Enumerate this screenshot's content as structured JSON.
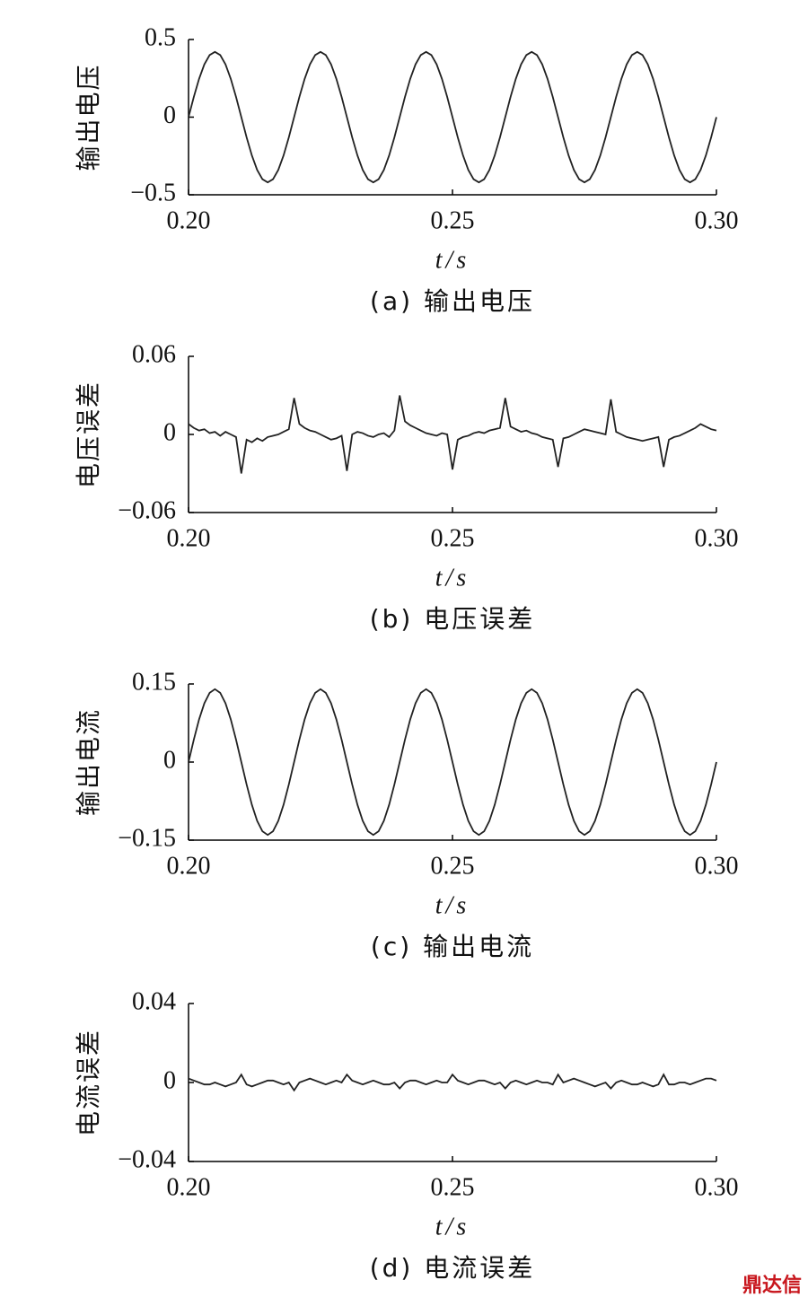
{
  "chart_data": [
    {
      "type": "line",
      "ylabel": "输出电压",
      "xlabel": "t/s",
      "caption": "(a) 输出电压",
      "color": "#222222",
      "xlim": [
        0.2,
        0.3
      ],
      "xticks": [
        {
          "value": 0.2,
          "label": "0.20"
        },
        0.25,
        {
          "value": 0.3,
          "label": "0.30"
        }
      ],
      "ylim": [
        -0.5,
        0.5
      ],
      "yticks": [
        {
          "value": -0.5,
          "label": "−0.5"
        },
        0,
        0.5
      ],
      "x": [
        0.2,
        0.201,
        0.202,
        0.203,
        0.204,
        0.205,
        0.206,
        0.207,
        0.208,
        0.209,
        0.21,
        0.211,
        0.212,
        0.213,
        0.214,
        0.215,
        0.216,
        0.217,
        0.218,
        0.219,
        0.22,
        0.221,
        0.222,
        0.223,
        0.224,
        0.225,
        0.226,
        0.227,
        0.228,
        0.229,
        0.23,
        0.231,
        0.232,
        0.233,
        0.234,
        0.235,
        0.236,
        0.237,
        0.238,
        0.239,
        0.24,
        0.241,
        0.242,
        0.243,
        0.244,
        0.245,
        0.246,
        0.247,
        0.248,
        0.249,
        0.25,
        0.251,
        0.252,
        0.253,
        0.254,
        0.255,
        0.256,
        0.257,
        0.258,
        0.259,
        0.26,
        0.261,
        0.262,
        0.263,
        0.264,
        0.265,
        0.266,
        0.267,
        0.268,
        0.269,
        0.27,
        0.271,
        0.272,
        0.273,
        0.274,
        0.275,
        0.276,
        0.277,
        0.278,
        0.279,
        0.28,
        0.281,
        0.282,
        0.283,
        0.284,
        0.285,
        0.286,
        0.287,
        0.288,
        0.289,
        0.29,
        0.291,
        0.292,
        0.293,
        0.294,
        0.295,
        0.296,
        0.297,
        0.298,
        0.299,
        0.3
      ],
      "values": [
        0,
        0.13,
        0.247,
        0.34,
        0.4,
        0.42,
        0.4,
        0.34,
        0.247,
        0.13,
        0,
        -0.13,
        -0.247,
        -0.34,
        -0.4,
        -0.42,
        -0.4,
        -0.34,
        -0.247,
        -0.13,
        0,
        0.13,
        0.247,
        0.34,
        0.4,
        0.42,
        0.4,
        0.34,
        0.247,
        0.13,
        0,
        -0.13,
        -0.247,
        -0.34,
        -0.4,
        -0.42,
        -0.4,
        -0.34,
        -0.247,
        -0.13,
        0,
        0.13,
        0.247,
        0.34,
        0.4,
        0.42,
        0.4,
        0.34,
        0.247,
        0.13,
        0,
        -0.13,
        -0.247,
        -0.34,
        -0.4,
        -0.42,
        -0.4,
        -0.34,
        -0.247,
        -0.13,
        0,
        0.13,
        0.247,
        0.34,
        0.4,
        0.42,
        0.4,
        0.34,
        0.247,
        0.13,
        0,
        -0.13,
        -0.247,
        -0.34,
        -0.4,
        -0.42,
        -0.4,
        -0.34,
        -0.247,
        -0.13,
        0,
        0.13,
        0.247,
        0.34,
        0.4,
        0.42,
        0.4,
        0.34,
        0.247,
        0.13,
        0,
        -0.13,
        -0.247,
        -0.34,
        -0.4,
        -0.42,
        -0.4,
        -0.34,
        -0.247,
        -0.13,
        0
      ]
    },
    {
      "type": "line",
      "ylabel": "电压误差",
      "xlabel": "t/s",
      "caption": "(b) 电压误差",
      "color": "#222222",
      "xlim": [
        0.2,
        0.3
      ],
      "xticks": [
        {
          "value": 0.2,
          "label": "0.20"
        },
        0.25,
        {
          "value": 0.3,
          "label": "0.30"
        }
      ],
      "ylim": [
        -0.06,
        0.06
      ],
      "yticks": [
        {
          "value": -0.06,
          "label": "−0.06"
        },
        0,
        0.06
      ],
      "x": [
        0.2,
        0.201,
        0.202,
        0.203,
        0.204,
        0.205,
        0.206,
        0.207,
        0.208,
        0.209,
        0.21,
        0.211,
        0.212,
        0.213,
        0.214,
        0.215,
        0.216,
        0.217,
        0.218,
        0.219,
        0.22,
        0.221,
        0.222,
        0.223,
        0.224,
        0.225,
        0.226,
        0.227,
        0.228,
        0.229,
        0.23,
        0.231,
        0.232,
        0.233,
        0.234,
        0.235,
        0.236,
        0.237,
        0.238,
        0.239,
        0.24,
        0.241,
        0.242,
        0.243,
        0.244,
        0.245,
        0.246,
        0.247,
        0.248,
        0.249,
        0.25,
        0.251,
        0.252,
        0.253,
        0.254,
        0.255,
        0.256,
        0.257,
        0.258,
        0.259,
        0.26,
        0.261,
        0.262,
        0.263,
        0.264,
        0.265,
        0.266,
        0.267,
        0.268,
        0.269,
        0.27,
        0.271,
        0.272,
        0.273,
        0.274,
        0.275,
        0.276,
        0.277,
        0.278,
        0.279,
        0.28,
        0.281,
        0.282,
        0.283,
        0.284,
        0.285,
        0.286,
        0.287,
        0.288,
        0.289,
        0.29,
        0.291,
        0.292,
        0.293,
        0.294,
        0.295,
        0.296,
        0.297,
        0.298,
        0.299,
        0.3
      ],
      "values": [
        0.008,
        0.005,
        0.003,
        0.004,
        0.001,
        0.002,
        -0.001,
        0.002,
        0.0,
        -0.002,
        -0.03,
        -0.004,
        -0.006,
        -0.003,
        -0.005,
        -0.002,
        -0.001,
        0.0,
        0.002,
        0.004,
        0.028,
        0.008,
        0.005,
        0.003,
        0.002,
        0.0,
        -0.002,
        -0.004,
        -0.003,
        -0.001,
        -0.028,
        0.0,
        0.002,
        0.001,
        -0.001,
        -0.002,
        0.0,
        0.001,
        -0.002,
        0.003,
        0.03,
        0.01,
        0.007,
        0.005,
        0.003,
        0.001,
        0.0,
        -0.001,
        0.001,
        0.0,
        -0.027,
        -0.004,
        -0.002,
        -0.001,
        0.001,
        0.002,
        0.001,
        0.003,
        0.004,
        0.005,
        0.028,
        0.006,
        0.004,
        0.002,
        0.003,
        0.001,
        0.0,
        -0.002,
        -0.003,
        -0.004,
        -0.025,
        -0.003,
        -0.002,
        0.0,
        0.002,
        0.004,
        0.003,
        0.002,
        0.001,
        0.0,
        0.027,
        0.002,
        0.0,
        -0.002,
        -0.003,
        -0.004,
        -0.005,
        -0.004,
        -0.003,
        -0.002,
        -0.025,
        -0.004,
        -0.002,
        -0.001,
        0.001,
        0.003,
        0.005,
        0.008,
        0.006,
        0.004,
        0.003
      ]
    },
    {
      "type": "line",
      "ylabel": "输出电流",
      "xlabel": "t/s",
      "caption": "(c) 输出电流",
      "color": "#222222",
      "xlim": [
        0.2,
        0.3
      ],
      "xticks": [
        {
          "value": 0.2,
          "label": "0.20"
        },
        0.25,
        {
          "value": 0.3,
          "label": "0.30"
        }
      ],
      "ylim": [
        -0.15,
        0.15
      ],
      "yticks": [
        {
          "value": -0.15,
          "label": "−0.15"
        },
        0,
        0.15
      ],
      "x": [
        0.2,
        0.201,
        0.202,
        0.203,
        0.204,
        0.205,
        0.206,
        0.207,
        0.208,
        0.209,
        0.21,
        0.211,
        0.212,
        0.213,
        0.214,
        0.215,
        0.216,
        0.217,
        0.218,
        0.219,
        0.22,
        0.221,
        0.222,
        0.223,
        0.224,
        0.225,
        0.226,
        0.227,
        0.228,
        0.229,
        0.23,
        0.231,
        0.232,
        0.233,
        0.234,
        0.235,
        0.236,
        0.237,
        0.238,
        0.239,
        0.24,
        0.241,
        0.242,
        0.243,
        0.244,
        0.245,
        0.246,
        0.247,
        0.248,
        0.249,
        0.25,
        0.251,
        0.252,
        0.253,
        0.254,
        0.255,
        0.256,
        0.257,
        0.258,
        0.259,
        0.26,
        0.261,
        0.262,
        0.263,
        0.264,
        0.265,
        0.266,
        0.267,
        0.268,
        0.269,
        0.27,
        0.271,
        0.272,
        0.273,
        0.274,
        0.275,
        0.276,
        0.277,
        0.278,
        0.279,
        0.28,
        0.281,
        0.282,
        0.283,
        0.284,
        0.285,
        0.286,
        0.287,
        0.288,
        0.289,
        0.29,
        0.291,
        0.292,
        0.293,
        0.294,
        0.295,
        0.296,
        0.297,
        0.298,
        0.299,
        0.3
      ],
      "values": [
        0,
        0.043,
        0.082,
        0.113,
        0.133,
        0.14,
        0.133,
        0.113,
        0.082,
        0.043,
        0,
        -0.043,
        -0.082,
        -0.113,
        -0.133,
        -0.14,
        -0.133,
        -0.113,
        -0.082,
        -0.043,
        0,
        0.043,
        0.082,
        0.113,
        0.133,
        0.14,
        0.133,
        0.113,
        0.082,
        0.043,
        0,
        -0.043,
        -0.082,
        -0.113,
        -0.133,
        -0.14,
        -0.133,
        -0.113,
        -0.082,
        -0.043,
        0,
        0.043,
        0.082,
        0.113,
        0.133,
        0.14,
        0.133,
        0.113,
        0.082,
        0.043,
        0,
        -0.043,
        -0.082,
        -0.113,
        -0.133,
        -0.14,
        -0.133,
        -0.113,
        -0.082,
        -0.043,
        0,
        0.043,
        0.082,
        0.113,
        0.133,
        0.14,
        0.133,
        0.113,
        0.082,
        0.043,
        0,
        -0.043,
        -0.082,
        -0.113,
        -0.133,
        -0.14,
        -0.133,
        -0.113,
        -0.082,
        -0.043,
        0,
        0.043,
        0.082,
        0.113,
        0.133,
        0.14,
        0.133,
        0.113,
        0.082,
        0.043,
        0,
        -0.043,
        -0.082,
        -0.113,
        -0.133,
        -0.14,
        -0.133,
        -0.113,
        -0.082,
        -0.043,
        0
      ]
    },
    {
      "type": "line",
      "ylabel": "电流误差",
      "xlabel": "t/s",
      "caption": "(d) 电流误差",
      "color": "#222222",
      "xlim": [
        0.2,
        0.3
      ],
      "xticks": [
        {
          "value": 0.2,
          "label": "0.20"
        },
        0.25,
        {
          "value": 0.3,
          "label": "0.30"
        }
      ],
      "ylim": [
        -0.04,
        0.04
      ],
      "yticks": [
        {
          "value": -0.04,
          "label": "−0.04"
        },
        0,
        0.04
      ],
      "x": [
        0.2,
        0.201,
        0.202,
        0.203,
        0.204,
        0.205,
        0.206,
        0.207,
        0.208,
        0.209,
        0.21,
        0.211,
        0.212,
        0.213,
        0.214,
        0.215,
        0.216,
        0.217,
        0.218,
        0.219,
        0.22,
        0.221,
        0.222,
        0.223,
        0.224,
        0.225,
        0.226,
        0.227,
        0.228,
        0.229,
        0.23,
        0.231,
        0.232,
        0.233,
        0.234,
        0.235,
        0.236,
        0.237,
        0.238,
        0.239,
        0.24,
        0.241,
        0.242,
        0.243,
        0.244,
        0.245,
        0.246,
        0.247,
        0.248,
        0.249,
        0.25,
        0.251,
        0.252,
        0.253,
        0.254,
        0.255,
        0.256,
        0.257,
        0.258,
        0.259,
        0.26,
        0.261,
        0.262,
        0.263,
        0.264,
        0.265,
        0.266,
        0.267,
        0.268,
        0.269,
        0.27,
        0.271,
        0.272,
        0.273,
        0.274,
        0.275,
        0.276,
        0.277,
        0.278,
        0.279,
        0.28,
        0.281,
        0.282,
        0.283,
        0.284,
        0.285,
        0.286,
        0.287,
        0.288,
        0.289,
        0.29,
        0.291,
        0.292,
        0.293,
        0.294,
        0.295,
        0.296,
        0.297,
        0.298,
        0.299,
        0.3
      ],
      "values": [
        0.002,
        0.001,
        0.0,
        -0.001,
        -0.001,
        0.0,
        -0.001,
        -0.002,
        -0.001,
        0.0,
        0.004,
        -0.001,
        -0.002,
        -0.001,
        0.0,
        0.001,
        0.001,
        0.0,
        -0.001,
        0.0,
        -0.004,
        0.0,
        0.001,
        0.002,
        0.001,
        0.0,
        -0.001,
        0.0,
        0.001,
        0.0,
        0.004,
        0.001,
        0.0,
        -0.001,
        0.0,
        0.001,
        0.0,
        -0.001,
        -0.001,
        0.0,
        -0.003,
        0.0,
        0.001,
        0.001,
        0.0,
        -0.001,
        0.0,
        0.001,
        0.0,
        0.0,
        0.004,
        0.001,
        0.0,
        -0.001,
        0.0,
        0.001,
        0.001,
        0.0,
        -0.001,
        0.0,
        -0.003,
        0.0,
        0.001,
        0.0,
        -0.001,
        0.0,
        0.001,
        0.0,
        0.0,
        -0.001,
        0.004,
        0.0,
        0.001,
        0.002,
        0.001,
        0.0,
        -0.001,
        -0.002,
        -0.001,
        0.0,
        -0.003,
        0.0,
        0.001,
        0.0,
        -0.001,
        -0.001,
        0.0,
        -0.001,
        -0.002,
        -0.001,
        0.004,
        -0.001,
        -0.001,
        0.0,
        0.0,
        -0.001,
        0.0,
        0.001,
        0.002,
        0.002,
        0.001
      ]
    }
  ],
  "watermark": "鼎达信"
}
